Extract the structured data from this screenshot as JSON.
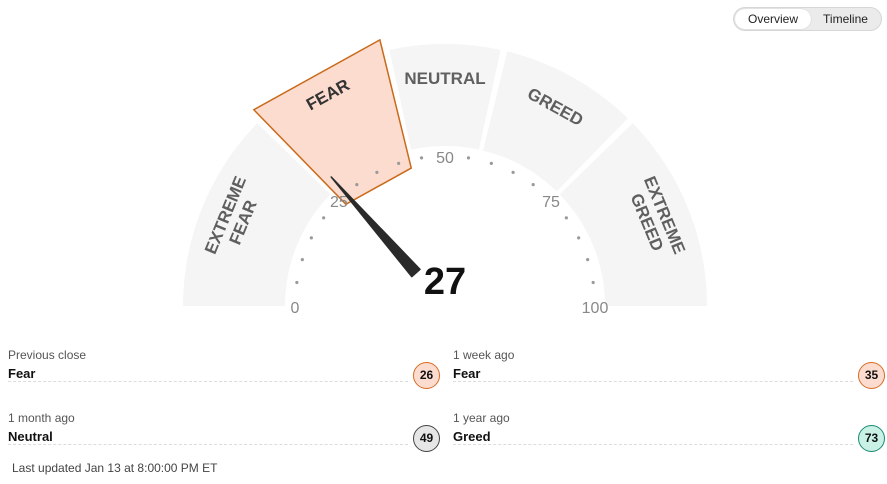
{
  "toggle": {
    "overview": "Overview",
    "timeline": "Timeline"
  },
  "gauge": {
    "value": 27,
    "value_text": "27",
    "segments": [
      "EXTREME FEAR",
      "FEAR",
      "NEUTRAL",
      "GREED",
      "EXTREME GREED"
    ],
    "active_segment": 1,
    "scale_labels": [
      "0",
      "25",
      "50",
      "75",
      "100"
    ],
    "colors": {
      "segment": "#f5f5f5",
      "segment_active": "#fcdccf",
      "segment_active_border": "#c96a1b",
      "segment_text": "#5f5f5f",
      "needle": "#2a2a2a",
      "dots": "#9a9a9a"
    }
  },
  "stats": [
    {
      "label": "Previous close",
      "value": "Fear",
      "score": "26",
      "color": "#fcdccf",
      "border": "#d96c25"
    },
    {
      "label": "1 week ago",
      "value": "Fear",
      "score": "35",
      "color": "#fcdccf",
      "border": "#d96c25"
    },
    {
      "label": "1 month ago",
      "value": "Neutral",
      "score": "49",
      "color": "#e6e6e6",
      "border": "#444444"
    },
    {
      "label": "1 year ago",
      "value": "Greed",
      "score": "73",
      "color": "#c9f1e6",
      "border": "#1a8a73"
    }
  ],
  "last_updated": "Last updated Jan 13 at 8:00:00 PM ET"
}
